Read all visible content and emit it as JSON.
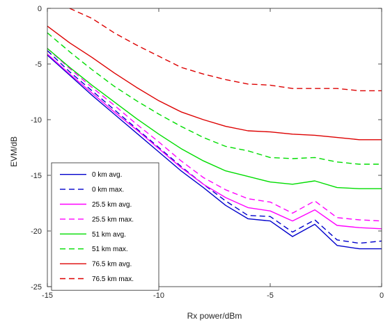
{
  "chart_data": {
    "type": "line",
    "xlabel": "Rx power/dBm",
    "ylabel": "EVM/dB",
    "xlim": [
      -15,
      0
    ],
    "ylim": [
      -25,
      0
    ],
    "xticks": [
      -15,
      -10,
      -5,
      0
    ],
    "yticks": [
      0,
      -5,
      -10,
      -15,
      -20,
      -25
    ],
    "grid": false,
    "legend_position": "bottom-left",
    "series": [
      {
        "name": "0 km avg.",
        "color": "#0000cc",
        "dashed": false,
        "x": [
          -15,
          -14,
          -13,
          -12,
          -11,
          -10,
          -9,
          -8,
          -7,
          -6,
          -5,
          -4,
          -3,
          -2,
          -1,
          0
        ],
        "y": [
          -4.2,
          -6.0,
          -7.8,
          -9.5,
          -11.2,
          -12.9,
          -14.6,
          -16.1,
          -17.7,
          -18.9,
          -19.1,
          -20.5,
          -19.4,
          -21.3,
          -21.6,
          -21.6
        ]
      },
      {
        "name": "0 km max.",
        "color": "#0000cc",
        "dashed": true,
        "x": [
          -15,
          -14,
          -13,
          -12,
          -11,
          -10,
          -9,
          -8,
          -7,
          -6,
          -5,
          -4,
          -3,
          -2,
          -1,
          0
        ],
        "y": [
          -3.8,
          -5.7,
          -7.4,
          -9.1,
          -10.8,
          -12.5,
          -14.2,
          -15.8,
          -17.3,
          -18.6,
          -18.7,
          -20.1,
          -19.0,
          -20.8,
          -21.1,
          -20.9
        ]
      },
      {
        "name": "25.5 km avg.",
        "color": "#ff00ff",
        "dashed": false,
        "x": [
          -15,
          -14,
          -13,
          -12,
          -11,
          -10,
          -9,
          -8,
          -7,
          -6,
          -5,
          -4,
          -3,
          -2,
          -1,
          0
        ],
        "y": [
          -4.1,
          -5.9,
          -7.6,
          -9.3,
          -10.9,
          -12.6,
          -14.3,
          -15.8,
          -17.0,
          -17.9,
          -18.2,
          -19.1,
          -18.1,
          -19.5,
          -19.7,
          -19.8
        ]
      },
      {
        "name": "25.5 km max.",
        "color": "#ff00ff",
        "dashed": true,
        "x": [
          -15,
          -14,
          -13,
          -12,
          -11,
          -10,
          -9,
          -8,
          -7,
          -6,
          -5,
          -4,
          -3,
          -2,
          -1,
          0
        ],
        "y": [
          -3.6,
          -5.4,
          -7.1,
          -8.7,
          -10.4,
          -12.0,
          -13.7,
          -15.2,
          -16.3,
          -17.1,
          -17.4,
          -18.4,
          -17.3,
          -18.8,
          -19.0,
          -19.1
        ]
      },
      {
        "name": "51 km avg.",
        "color": "#00dd00",
        "dashed": false,
        "x": [
          -15,
          -14,
          -13,
          -12,
          -11,
          -10,
          -9,
          -8,
          -7,
          -6,
          -5,
          -4,
          -3,
          -2,
          -1,
          0
        ],
        "y": [
          -3.6,
          -5.3,
          -6.9,
          -8.4,
          -9.9,
          -11.3,
          -12.6,
          -13.7,
          -14.6,
          -15.1,
          -15.6,
          -15.8,
          -15.5,
          -16.1,
          -16.2,
          -16.2
        ]
      },
      {
        "name": "51 km max.",
        "color": "#00dd00",
        "dashed": true,
        "x": [
          -15,
          -14,
          -13,
          -12,
          -11,
          -10,
          -9,
          -8,
          -7,
          -6,
          -5,
          -4,
          -3,
          -2,
          -1,
          0
        ],
        "y": [
          -2.2,
          -3.9,
          -5.5,
          -7.0,
          -8.3,
          -9.5,
          -10.6,
          -11.6,
          -12.4,
          -12.8,
          -13.4,
          -13.5,
          -13.4,
          -13.8,
          -14.0,
          -14.0
        ]
      },
      {
        "name": "76.5 km avg.",
        "color": "#dd0000",
        "dashed": false,
        "x": [
          -15,
          -14,
          -13,
          -12,
          -11,
          -10,
          -9,
          -8,
          -7,
          -6,
          -5,
          -4,
          -3,
          -2,
          -1,
          0
        ],
        "y": [
          -1.6,
          -3.1,
          -4.4,
          -5.8,
          -7.1,
          -8.3,
          -9.3,
          -10.0,
          -10.6,
          -11.0,
          -11.1,
          -11.3,
          -11.4,
          -11.6,
          -11.8,
          -11.8
        ]
      },
      {
        "name": "76.5 km max.",
        "color": "#dd0000",
        "dashed": true,
        "x": [
          -14,
          -13,
          -12,
          -11,
          -10,
          -9,
          -8,
          -7,
          -6,
          -5,
          -4,
          -3,
          -2,
          -1,
          0
        ],
        "y": [
          0.0,
          -0.9,
          -2.2,
          -3.3,
          -4.3,
          -5.3,
          -5.9,
          -6.4,
          -6.8,
          -6.9,
          -7.2,
          -7.2,
          -7.2,
          -7.4,
          -7.4
        ]
      }
    ]
  }
}
